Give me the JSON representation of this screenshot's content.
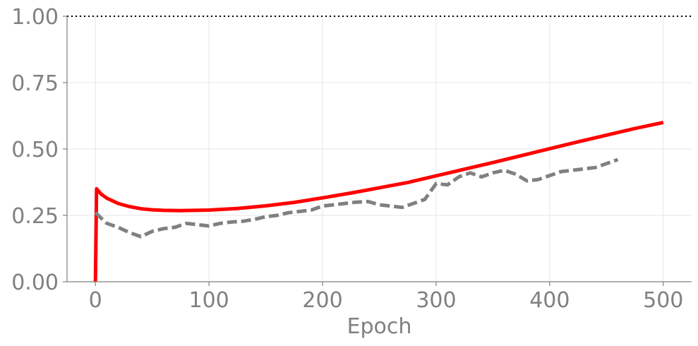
{
  "chart_data": {
    "type": "line",
    "title": "",
    "xlabel": "Epoch",
    "ylabel": "",
    "xlim": [
      -25,
      525
    ],
    "ylim": [
      0,
      1
    ],
    "x_ticks": [
      0,
      100,
      200,
      300,
      400,
      500
    ],
    "y_ticks": [
      0.0,
      0.25,
      0.5,
      0.75,
      1.0
    ],
    "x_tick_labels": [
      "0",
      "100",
      "200",
      "300",
      "400",
      "500"
    ],
    "y_tick_labels": [
      "0.00",
      "0.25",
      "0.50",
      "0.75",
      "1.00"
    ],
    "grid": true,
    "reference_line": {
      "y": 1.0,
      "style": "dotted",
      "color": "#000000"
    },
    "series": [
      {
        "style": "solid",
        "color": "#ff0000",
        "points": [
          [
            0,
            0.0
          ],
          [
            1,
            0.35
          ],
          [
            5,
            0.33
          ],
          [
            10,
            0.315
          ],
          [
            20,
            0.295
          ],
          [
            30,
            0.283
          ],
          [
            40,
            0.275
          ],
          [
            50,
            0.271
          ],
          [
            60,
            0.269
          ],
          [
            75,
            0.268
          ],
          [
            100,
            0.27
          ],
          [
            125,
            0.276
          ],
          [
            150,
            0.286
          ],
          [
            175,
            0.299
          ],
          [
            200,
            0.316
          ],
          [
            225,
            0.334
          ],
          [
            250,
            0.354
          ],
          [
            275,
            0.374
          ],
          [
            300,
            0.399
          ],
          [
            325,
            0.424
          ],
          [
            350,
            0.449
          ],
          [
            375,
            0.475
          ],
          [
            400,
            0.501
          ],
          [
            425,
            0.527
          ],
          [
            450,
            0.552
          ],
          [
            475,
            0.577
          ],
          [
            500,
            0.6
          ]
        ]
      },
      {
        "style": "dashed",
        "color": "#808080",
        "points": [
          [
            0,
            0.26
          ],
          [
            10,
            0.22
          ],
          [
            20,
            0.205
          ],
          [
            30,
            0.185
          ],
          [
            40,
            0.17
          ],
          [
            50,
            0.19
          ],
          [
            60,
            0.2
          ],
          [
            70,
            0.205
          ],
          [
            80,
            0.22
          ],
          [
            90,
            0.215
          ],
          [
            100,
            0.21
          ],
          [
            110,
            0.22
          ],
          [
            120,
            0.225
          ],
          [
            130,
            0.228
          ],
          [
            140,
            0.235
          ],
          [
            150,
            0.245
          ],
          [
            160,
            0.25
          ],
          [
            170,
            0.26
          ],
          [
            180,
            0.265
          ],
          [
            190,
            0.27
          ],
          [
            200,
            0.285
          ],
          [
            210,
            0.29
          ],
          [
            220,
            0.295
          ],
          [
            230,
            0.3
          ],
          [
            240,
            0.302
          ],
          [
            250,
            0.29
          ],
          [
            260,
            0.285
          ],
          [
            270,
            0.28
          ],
          [
            280,
            0.295
          ],
          [
            290,
            0.31
          ],
          [
            300,
            0.37
          ],
          [
            310,
            0.365
          ],
          [
            320,
            0.395
          ],
          [
            330,
            0.41
          ],
          [
            340,
            0.395
          ],
          [
            350,
            0.41
          ],
          [
            360,
            0.42
          ],
          [
            370,
            0.405
          ],
          [
            380,
            0.38
          ],
          [
            390,
            0.385
          ],
          [
            400,
            0.4
          ],
          [
            410,
            0.415
          ],
          [
            420,
            0.42
          ],
          [
            430,
            0.425
          ],
          [
            440,
            0.43
          ],
          [
            450,
            0.445
          ],
          [
            460,
            0.46
          ]
        ]
      }
    ]
  }
}
